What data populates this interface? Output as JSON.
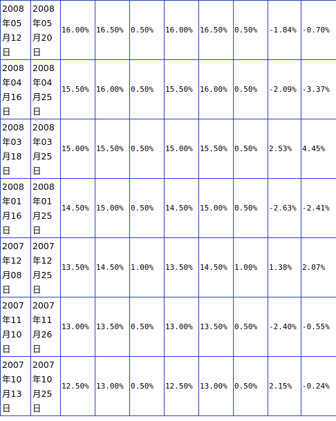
{
  "table": {
    "rows": [
      [
        "2008年05月12日",
        "2008年05月20日",
        "16.00%",
        "16.50%",
        "0.50%",
        "16.00%",
        "16.50%",
        "0.50%",
        "-1.84%",
        "-0.70%"
      ],
      [
        "2008年04月16日",
        "2008年04月25日",
        "15.50%",
        "16.00%",
        "0.50%",
        "15.50%",
        "16.00%",
        "0.50%",
        "-2.09%",
        "-3.37%"
      ],
      [
        "2008年03月18日",
        "2008年03月25日",
        "15.00%",
        "15.50%",
        "0.50%",
        "15.00%",
        "15.50%",
        "0.50%",
        "2.53%",
        "4.45%"
      ],
      [
        "2008年01月16日",
        "2008年01月25日",
        "14.50%",
        "15.00%",
        "0.50%",
        "14.50%",
        "15.00%",
        "0.50%",
        "-2.63%",
        "-2.41%"
      ],
      [
        "2007年12月08日",
        "2007年12月25日",
        "13.50%",
        "14.50%",
        "1.00%",
        "13.50%",
        "14.50%",
        "1.00%",
        "1.38%",
        "2.07%"
      ],
      [
        "2007年11月10日",
        "2007年11月26日",
        "13.00%",
        "13.50%",
        "0.50%",
        "13.00%",
        "13.50%",
        "0.50%",
        "-2.40%",
        "-0.55%"
      ],
      [
        "2007年10月13日",
        "2007年10月25日",
        "12.50%",
        "13.00%",
        "0.50%",
        "12.50%",
        "13.00%",
        "0.50%",
        "2.15%",
        "-0.24%"
      ]
    ]
  }
}
